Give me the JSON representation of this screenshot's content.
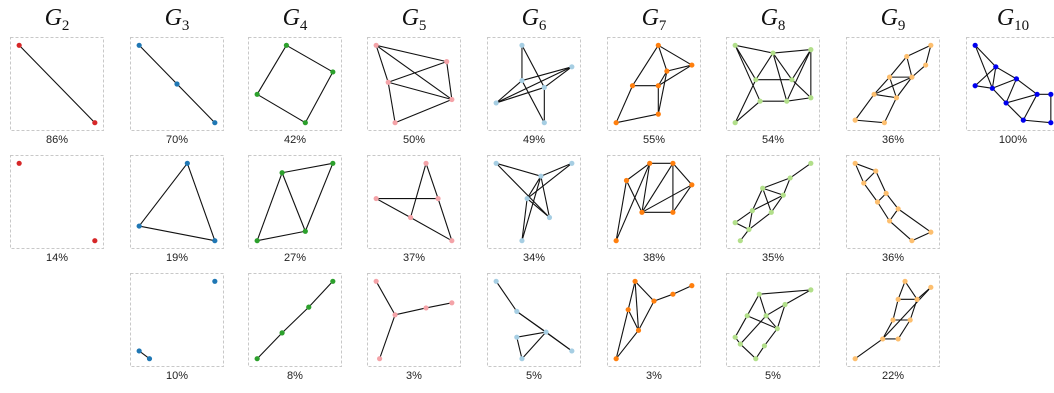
{
  "columns": [
    {
      "letter": "G",
      "sub": "2"
    },
    {
      "letter": "G",
      "sub": "3"
    },
    {
      "letter": "G",
      "sub": "4"
    },
    {
      "letter": "G",
      "sub": "5"
    },
    {
      "letter": "G",
      "sub": "6"
    },
    {
      "letter": "G",
      "sub": "7"
    },
    {
      "letter": "G",
      "sub": "8"
    },
    {
      "letter": "G",
      "sub": "9"
    },
    {
      "letter": "G",
      "sub": "10"
    }
  ],
  "colors": [
    "#d62728",
    "#1f77b4",
    "#2ca02c",
    "#f4a3a8",
    "#a6cee3",
    "#ff7f0e",
    "#b2df8a",
    "#fdbf6f",
    "#0000ee"
  ],
  "graphs": [
    {
      "col": 0,
      "row": 0,
      "label": "86%",
      "nodes": [
        [
          0.06,
          0.05
        ],
        [
          0.94,
          0.95
        ]
      ],
      "edges": [
        [
          0,
          1
        ]
      ]
    },
    {
      "col": 0,
      "row": 1,
      "label": "14%",
      "nodes": [
        [
          0.06,
          0.05
        ],
        [
          0.94,
          0.95
        ]
      ],
      "edges": []
    },
    {
      "col": 1,
      "row": 0,
      "label": "70%",
      "nodes": [
        [
          0.06,
          0.05
        ],
        [
          0.5,
          0.5
        ],
        [
          0.94,
          0.95
        ]
      ],
      "edges": [
        [
          0,
          1
        ],
        [
          1,
          2
        ]
      ]
    },
    {
      "col": 1,
      "row": 1,
      "label": "19%",
      "nodes": [
        [
          0.62,
          0.05
        ],
        [
          0.06,
          0.78
        ],
        [
          0.94,
          0.95
        ]
      ],
      "edges": [
        [
          0,
          1
        ],
        [
          1,
          2
        ],
        [
          0,
          2
        ]
      ]
    },
    {
      "col": 1,
      "row": 2,
      "label": "10%",
      "nodes": [
        [
          0.94,
          0.05
        ],
        [
          0.06,
          0.86
        ],
        [
          0.18,
          0.95
        ]
      ],
      "edges": [
        [
          1,
          2
        ]
      ]
    },
    {
      "col": 2,
      "row": 0,
      "label": "42%",
      "nodes": [
        [
          0.4,
          0.05
        ],
        [
          0.94,
          0.36
        ],
        [
          0.06,
          0.62
        ],
        [
          0.62,
          0.95
        ]
      ],
      "edges": [
        [
          0,
          1
        ],
        [
          1,
          3
        ],
        [
          3,
          2
        ],
        [
          2,
          0
        ]
      ]
    },
    {
      "col": 2,
      "row": 1,
      "label": "27%",
      "nodes": [
        [
          0.35,
          0.16
        ],
        [
          0.94,
          0.05
        ],
        [
          0.06,
          0.95
        ],
        [
          0.62,
          0.84
        ]
      ],
      "edges": [
        [
          0,
          1
        ],
        [
          1,
          3
        ],
        [
          3,
          2
        ],
        [
          2,
          0
        ],
        [
          0,
          3
        ]
      ]
    },
    {
      "col": 2,
      "row": 2,
      "label": "8%",
      "nodes": [
        [
          0.94,
          0.05
        ],
        [
          0.66,
          0.35
        ],
        [
          0.35,
          0.65
        ],
        [
          0.06,
          0.95
        ]
      ],
      "edges": [
        [
          0,
          1
        ],
        [
          1,
          2
        ],
        [
          2,
          3
        ]
      ]
    },
    {
      "col": 3,
      "row": 0,
      "label": "50%",
      "nodes": [
        [
          0.06,
          0.05
        ],
        [
          0.88,
          0.24
        ],
        [
          0.2,
          0.48
        ],
        [
          0.94,
          0.68
        ],
        [
          0.28,
          0.95
        ]
      ],
      "edges": [
        [
          0,
          1
        ],
        [
          0,
          2
        ],
        [
          0,
          3
        ],
        [
          2,
          1
        ],
        [
          2,
          3
        ],
        [
          1,
          3
        ],
        [
          3,
          4
        ],
        [
          4,
          2
        ]
      ]
    },
    {
      "col": 3,
      "row": 1,
      "label": "37%",
      "nodes": [
        [
          0.64,
          0.05
        ],
        [
          0.06,
          0.46
        ],
        [
          0.78,
          0.46
        ],
        [
          0.46,
          0.68
        ],
        [
          0.94,
          0.95
        ]
      ],
      "edges": [
        [
          0,
          3
        ],
        [
          0,
          2
        ],
        [
          2,
          4
        ],
        [
          1,
          2
        ],
        [
          1,
          3
        ],
        [
          3,
          4
        ]
      ]
    },
    {
      "col": 3,
      "row": 2,
      "label": "3%",
      "nodes": [
        [
          0.06,
          0.05
        ],
        [
          0.28,
          0.44
        ],
        [
          0.64,
          0.36
        ],
        [
          0.94,
          0.3
        ],
        [
          0.1,
          0.95
        ]
      ],
      "edges": [
        [
          0,
          1
        ],
        [
          1,
          2
        ],
        [
          2,
          3
        ],
        [
          1,
          4
        ]
      ]
    },
    {
      "col": 4,
      "row": 0,
      "label": "49%",
      "nodes": [
        [
          0.36,
          0.05
        ],
        [
          0.94,
          0.3
        ],
        [
          0.36,
          0.46
        ],
        [
          0.62,
          0.54
        ],
        [
          0.06,
          0.72
        ],
        [
          0.62,
          0.95
        ]
      ],
      "edges": [
        [
          0,
          2
        ],
        [
          0,
          3
        ],
        [
          1,
          2
        ],
        [
          1,
          4
        ],
        [
          2,
          4
        ],
        [
          2,
          5
        ],
        [
          3,
          5
        ],
        [
          3,
          1
        ],
        [
          4,
          3
        ]
      ]
    },
    {
      "col": 4,
      "row": 1,
      "label": "34%",
      "nodes": [
        [
          0.06,
          0.05
        ],
        [
          0.94,
          0.05
        ],
        [
          0.58,
          0.2
        ],
        [
          0.42,
          0.46
        ],
        [
          0.68,
          0.68
        ],
        [
          0.36,
          0.95
        ]
      ],
      "edges": [
        [
          0,
          2
        ],
        [
          0,
          4
        ],
        [
          1,
          2
        ],
        [
          1,
          3
        ],
        [
          2,
          3
        ],
        [
          3,
          4
        ],
        [
          3,
          5
        ],
        [
          2,
          5
        ],
        [
          2,
          4
        ]
      ]
    },
    {
      "col": 4,
      "row": 2,
      "label": "5%",
      "nodes": [
        [
          0.06,
          0.05
        ],
        [
          0.3,
          0.4
        ],
        [
          0.64,
          0.64
        ],
        [
          0.3,
          0.7
        ],
        [
          0.94,
          0.86
        ],
        [
          0.36,
          0.95
        ]
      ],
      "edges": [
        [
          0,
          1
        ],
        [
          1,
          2
        ],
        [
          1,
          4
        ],
        [
          3,
          2
        ],
        [
          3,
          5
        ],
        [
          2,
          4
        ],
        [
          5,
          2
        ]
      ]
    },
    {
      "col": 5,
      "row": 0,
      "label": "55%",
      "nodes": [
        [
          0.55,
          0.05
        ],
        [
          0.65,
          0.35
        ],
        [
          0.94,
          0.28
        ],
        [
          0.25,
          0.52
        ],
        [
          0.55,
          0.52
        ],
        [
          0.55,
          0.85
        ],
        [
          0.06,
          0.95
        ]
      ],
      "edges": [
        [
          0,
          1
        ],
        [
          0,
          2
        ],
        [
          0,
          3
        ],
        [
          1,
          2
        ],
        [
          1,
          4
        ],
        [
          1,
          5
        ],
        [
          2,
          4
        ],
        [
          3,
          4
        ],
        [
          3,
          6
        ],
        [
          4,
          5
        ],
        [
          5,
          6
        ]
      ]
    },
    {
      "col": 5,
      "row": 1,
      "label": "38%",
      "nodes": [
        [
          0.45,
          0.05
        ],
        [
          0.72,
          0.05
        ],
        [
          0.94,
          0.3
        ],
        [
          0.18,
          0.25
        ],
        [
          0.36,
          0.62
        ],
        [
          0.72,
          0.62
        ],
        [
          0.06,
          0.95
        ]
      ],
      "edges": [
        [
          0,
          1
        ],
        [
          1,
          2
        ],
        [
          0,
          3
        ],
        [
          0,
          4
        ],
        [
          1,
          4
        ],
        [
          1,
          5
        ],
        [
          2,
          5
        ],
        [
          3,
          6
        ],
        [
          4,
          5
        ],
        [
          3,
          4
        ],
        [
          0,
          6
        ],
        [
          2,
          4
        ]
      ]
    },
    {
      "col": 5,
      "row": 2,
      "label": "3%",
      "nodes": [
        [
          0.28,
          0.05
        ],
        [
          0.94,
          0.1
        ],
        [
          0.72,
          0.2
        ],
        [
          0.5,
          0.28
        ],
        [
          0.2,
          0.38
        ],
        [
          0.32,
          0.62
        ],
        [
          0.06,
          0.95
        ]
      ],
      "edges": [
        [
          0,
          3
        ],
        [
          0,
          4
        ],
        [
          1,
          2
        ],
        [
          2,
          3
        ],
        [
          3,
          5
        ],
        [
          4,
          5
        ],
        [
          0,
          5
        ],
        [
          5,
          6
        ],
        [
          4,
          6
        ]
      ]
    },
    {
      "col": 6,
      "row": 0,
      "label": "54%",
      "nodes": [
        [
          0.06,
          0.05
        ],
        [
          0.5,
          0.14
        ],
        [
          0.94,
          0.1
        ],
        [
          0.3,
          0.45
        ],
        [
          0.72,
          0.45
        ],
        [
          0.35,
          0.7
        ],
        [
          0.66,
          0.7
        ],
        [
          0.94,
          0.66
        ],
        [
          0.06,
          0.95
        ]
      ],
      "edges": [
        [
          0,
          1
        ],
        [
          1,
          2
        ],
        [
          0,
          3
        ],
        [
          1,
          3
        ],
        [
          1,
          4
        ],
        [
          2,
          4
        ],
        [
          0,
          5
        ],
        [
          1,
          6
        ],
        [
          2,
          7
        ],
        [
          3,
          4
        ],
        [
          5,
          6
        ],
        [
          6,
          7
        ],
        [
          3,
          8
        ],
        [
          5,
          8
        ],
        [
          2,
          6
        ],
        [
          4,
          7
        ]
      ]
    },
    {
      "col": 6,
      "row": 1,
      "label": "35%",
      "nodes": [
        [
          0.94,
          0.05
        ],
        [
          0.7,
          0.22
        ],
        [
          0.38,
          0.34
        ],
        [
          0.62,
          0.42
        ],
        [
          0.26,
          0.6
        ],
        [
          0.48,
          0.62
        ],
        [
          0.06,
          0.74
        ],
        [
          0.22,
          0.82
        ],
        [
          0.12,
          0.95
        ]
      ],
      "edges": [
        [
          0,
          1
        ],
        [
          1,
          2
        ],
        [
          1,
          3
        ],
        [
          2,
          4
        ],
        [
          2,
          5
        ],
        [
          3,
          4
        ],
        [
          3,
          5
        ],
        [
          4,
          6
        ],
        [
          5,
          7
        ],
        [
          6,
          7
        ],
        [
          7,
          8
        ],
        [
          4,
          7
        ],
        [
          2,
          3
        ]
      ]
    },
    {
      "col": 6,
      "row": 2,
      "label": "5%",
      "nodes": [
        [
          0.94,
          0.15
        ],
        [
          0.64,
          0.32
        ],
        [
          0.34,
          0.2
        ],
        [
          0.2,
          0.45
        ],
        [
          0.42,
          0.45
        ],
        [
          0.55,
          0.6
        ],
        [
          0.12,
          0.78
        ],
        [
          0.4,
          0.8
        ],
        [
          0.3,
          0.95
        ],
        [
          0.06,
          0.7
        ]
      ],
      "edges": [
        [
          0,
          1
        ],
        [
          0,
          2
        ],
        [
          1,
          4
        ],
        [
          2,
          3
        ],
        [
          2,
          4
        ],
        [
          3,
          5
        ],
        [
          4,
          6
        ],
        [
          5,
          7
        ],
        [
          6,
          8
        ],
        [
          7,
          8
        ],
        [
          3,
          9
        ],
        [
          9,
          6
        ],
        [
          1,
          5
        ],
        [
          4,
          5
        ]
      ]
    },
    {
      "col": 7,
      "row": 0,
      "label": "36%",
      "nodes": [
        [
          0.94,
          0.05
        ],
        [
          0.66,
          0.18
        ],
        [
          0.88,
          0.28
        ],
        [
          0.46,
          0.42
        ],
        [
          0.72,
          0.42
        ],
        [
          0.28,
          0.62
        ],
        [
          0.54,
          0.66
        ],
        [
          0.06,
          0.92
        ],
        [
          0.4,
          0.95
        ]
      ],
      "edges": [
        [
          0,
          1
        ],
        [
          0,
          2
        ],
        [
          1,
          3
        ],
        [
          1,
          4
        ],
        [
          2,
          4
        ],
        [
          3,
          5
        ],
        [
          4,
          6
        ],
        [
          3,
          4
        ],
        [
          5,
          6
        ],
        [
          5,
          7
        ],
        [
          6,
          8
        ],
        [
          7,
          8
        ],
        [
          3,
          6
        ],
        [
          4,
          5
        ]
      ]
    },
    {
      "col": 7,
      "row": 1,
      "label": "36%",
      "nodes": [
        [
          0.06,
          0.05
        ],
        [
          0.3,
          0.14
        ],
        [
          0.16,
          0.28
        ],
        [
          0.42,
          0.4
        ],
        [
          0.32,
          0.5
        ],
        [
          0.56,
          0.58
        ],
        [
          0.46,
          0.72
        ],
        [
          0.94,
          0.85
        ],
        [
          0.72,
          0.95
        ]
      ],
      "edges": [
        [
          0,
          1
        ],
        [
          0,
          2
        ],
        [
          1,
          3
        ],
        [
          2,
          4
        ],
        [
          3,
          4
        ],
        [
          3,
          5
        ],
        [
          4,
          6
        ],
        [
          5,
          6
        ],
        [
          5,
          7
        ],
        [
          6,
          8
        ],
        [
          7,
          8
        ],
        [
          1,
          2
        ]
      ]
    },
    {
      "col": 7,
      "row": 2,
      "label": "22%",
      "nodes": [
        [
          0.64,
          0.05
        ],
        [
          0.94,
          0.12
        ],
        [
          0.56,
          0.26
        ],
        [
          0.78,
          0.26
        ],
        [
          0.5,
          0.5
        ],
        [
          0.7,
          0.5
        ],
        [
          0.38,
          0.72
        ],
        [
          0.56,
          0.72
        ],
        [
          0.06,
          0.95
        ]
      ],
      "edges": [
        [
          0,
          2
        ],
        [
          0,
          3
        ],
        [
          1,
          3
        ],
        [
          1,
          6
        ],
        [
          2,
          3
        ],
        [
          2,
          4
        ],
        [
          3,
          5
        ],
        [
          4,
          5
        ],
        [
          4,
          6
        ],
        [
          5,
          7
        ],
        [
          6,
          7
        ],
        [
          6,
          8
        ]
      ]
    },
    {
      "col": 8,
      "row": 0,
      "label": "100%",
      "nodes": [
        [
          0.06,
          0.05
        ],
        [
          0.3,
          0.3
        ],
        [
          0.54,
          0.44
        ],
        [
          0.78,
          0.62
        ],
        [
          0.06,
          0.52
        ],
        [
          0.26,
          0.55
        ],
        [
          0.42,
          0.72
        ],
        [
          0.62,
          0.92
        ],
        [
          0.94,
          0.62
        ],
        [
          0.94,
          0.95
        ]
      ],
      "edges": [
        [
          0,
          1
        ],
        [
          0,
          5
        ],
        [
          1,
          2
        ],
        [
          2,
          3
        ],
        [
          3,
          8
        ],
        [
          1,
          4
        ],
        [
          1,
          5
        ],
        [
          4,
          5
        ],
        [
          5,
          6
        ],
        [
          2,
          6
        ],
        [
          6,
          7
        ],
        [
          3,
          7
        ],
        [
          2,
          5
        ],
        [
          3,
          6
        ],
        [
          7,
          9
        ],
        [
          8,
          9
        ]
      ]
    }
  ]
}
